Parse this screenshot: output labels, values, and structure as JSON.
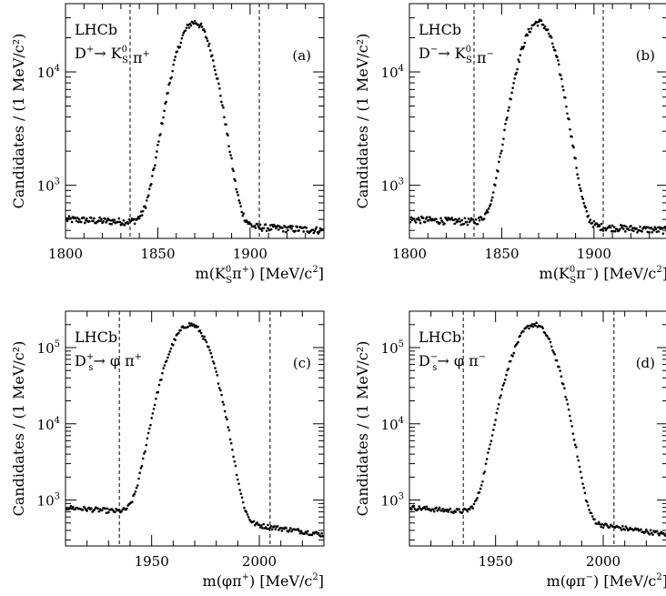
{
  "chart_data": [
    {
      "type": "scatter",
      "panel_label": "(a)",
      "experiment": "LHCb",
      "decay": {
        "parent": "D",
        "parent_charge": "+",
        "parent_sub": "",
        "arrow": "→",
        "products": [
          {
            "base": "K",
            "sup": "0",
            "sub": "S"
          },
          {
            "base": "π",
            "sup": "+"
          }
        ]
      },
      "xlabel": {
        "prefix": "m(K",
        "sup1": "0",
        "sub1": "S",
        "mid": "π",
        "sup2": "+",
        "suffix": ") [MeV/c",
        "sup3": "2",
        "end": "]"
      },
      "ylabel": "Candidates / (1 MeV/c²)",
      "xlim": [
        1800,
        1940
      ],
      "ylim": [
        340,
        40000
      ],
      "yscale": "log",
      "xticks": [
        1800,
        1850,
        1900
      ],
      "yticks": [
        1000,
        10000
      ],
      "ytick_labels": [
        {
          "base": "10",
          "exp": "3"
        },
        {
          "base": "10",
          "exp": "4"
        }
      ],
      "signal_window": [
        1835,
        1905
      ],
      "shape": {
        "peak": 1870,
        "sigma_l": 8.5,
        "sigma_r": 8.0,
        "amp": 27000,
        "bkg_left": 500,
        "bkg_right": 400,
        "bkg_edge": [
          1800,
          1940
        ],
        "ref_lo": 480,
        "ref_hi": 440
      }
    },
    {
      "type": "scatter",
      "panel_label": "(b)",
      "experiment": "LHCb",
      "decay": {
        "parent": "D",
        "parent_charge": "−",
        "parent_sub": "",
        "arrow": "→",
        "products": [
          {
            "base": "K",
            "sup": "0",
            "sub": "S"
          },
          {
            "base": "π",
            "sup": "−"
          }
        ]
      },
      "xlabel": {
        "prefix": "m(K",
        "sup1": "0",
        "sub1": "S",
        "mid": "π",
        "sup2": "−",
        "suffix": ") [MeV/c",
        "sup3": "2",
        "end": "]"
      },
      "ylabel": "Candidates / (1 MeV/c²)",
      "xlim": [
        1800,
        1940
      ],
      "ylim": [
        340,
        40000
      ],
      "yscale": "log",
      "xticks": [
        1800,
        1850,
        1900
      ],
      "yticks": [
        1000,
        10000
      ],
      "ytick_labels": [
        {
          "base": "10",
          "exp": "3"
        },
        {
          "base": "10",
          "exp": "4"
        }
      ],
      "signal_window": [
        1835,
        1905
      ],
      "shape": {
        "peak": 1870,
        "sigma_l": 8.5,
        "sigma_r": 8.0,
        "amp": 27000,
        "bkg_left": 500,
        "bkg_right": 400,
        "bkg_edge": [
          1800,
          1940
        ],
        "ref_lo": 480,
        "ref_hi": 440
      }
    },
    {
      "type": "scatter",
      "panel_label": "(c)",
      "experiment": "LHCb",
      "decay": {
        "parent": "D",
        "parent_charge": "+",
        "parent_sub": "s",
        "arrow": "→",
        "products": [
          {
            "base": "φ",
            "sup": "",
            "sub": ""
          },
          {
            "base": "π",
            "sup": "+"
          }
        ]
      },
      "xlabel": {
        "prefix": "m(φπ",
        "sup1": "",
        "sub1": "",
        "mid": "",
        "sup2": "+",
        "suffix": ") [MeV/c",
        "sup3": "2",
        "end": "]"
      },
      "ylabel": "Candidates / (1 MeV/c²)",
      "xlim": [
        1910,
        2030
      ],
      "ylim": [
        250,
        300000
      ],
      "yscale": "log",
      "xticks": [
        1950,
        2000
      ],
      "yticks": [
        1000,
        10000,
        100000
      ],
      "ytick_labels": [
        {
          "base": "10",
          "exp": "3"
        },
        {
          "base": "10",
          "exp": "4"
        },
        {
          "base": "10",
          "exp": "5"
        }
      ],
      "signal_window": [
        1935,
        2005
      ],
      "shape": {
        "peak": 1968,
        "sigma_l": 7.5,
        "sigma_r": 7.0,
        "amp": 200000,
        "bkg_left": 800,
        "bkg_right": 350,
        "bkg_edge": [
          1910,
          2030
        ],
        "ref_lo": 800,
        "ref_hi": 340
      }
    },
    {
      "type": "scatter",
      "panel_label": "(d)",
      "experiment": "LHCb",
      "decay": {
        "parent": "D",
        "parent_charge": "−",
        "parent_sub": "s",
        "arrow": "→",
        "products": [
          {
            "base": "φ",
            "sup": "",
            "sub": ""
          },
          {
            "base": "π",
            "sup": "−"
          }
        ]
      },
      "xlabel": {
        "prefix": "m(φπ",
        "sup1": "",
        "sub1": "",
        "mid": "",
        "sup2": "−",
        "suffix": ") [MeV/c",
        "sup3": "2",
        "end": "]"
      },
      "ylabel": "Candidates / (1 MeV/c²)",
      "xlim": [
        1910,
        2030
      ],
      "ylim": [
        250,
        300000
      ],
      "yscale": "log",
      "xticks": [
        1950,
        2000
      ],
      "yticks": [
        1000,
        10000,
        100000
      ],
      "ytick_labels": [
        {
          "base": "10",
          "exp": "3"
        },
        {
          "base": "10",
          "exp": "4"
        },
        {
          "base": "10",
          "exp": "5"
        }
      ],
      "signal_window": [
        1935,
        2005
      ],
      "shape": {
        "peak": 1968,
        "sigma_l": 7.5,
        "sigma_r": 7.0,
        "amp": 200000,
        "bkg_left": 800,
        "bkg_right": 350,
        "bkg_edge": [
          1910,
          2030
        ],
        "ref_lo": 800,
        "ref_hi": 340
      }
    }
  ]
}
